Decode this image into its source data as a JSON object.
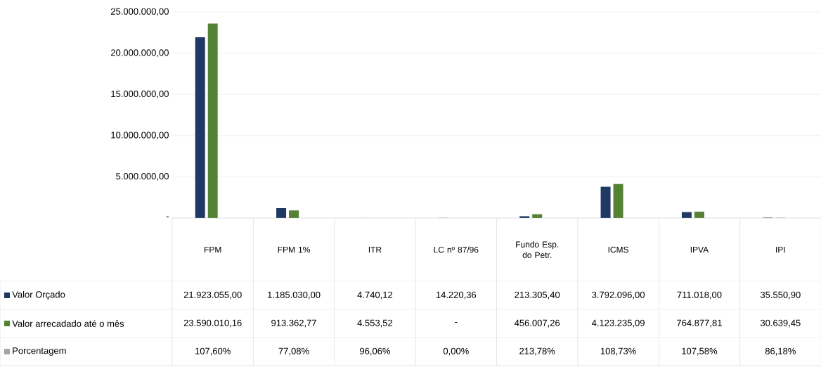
{
  "chart_data": {
    "type": "bar",
    "categories": [
      "FPM",
      "FPM 1%",
      "ITR",
      "LC nº 87/96",
      "Fundo Esp. do Petr.",
      "ICMS",
      "IPVA",
      "IPI"
    ],
    "series": [
      {
        "name": "Valor Orçado",
        "color": "#203864",
        "values": [
          21923055.0,
          1185030.0,
          4740.12,
          14220.36,
          213305.4,
          3792096.0,
          711018.0,
          35550.9
        ],
        "value_labels": [
          "21.923.055,00",
          "1.185.030,00",
          "4.740,12",
          "14.220,36",
          "213.305,40",
          "3.792.096,00",
          "711.018,00",
          "35.550,90"
        ]
      },
      {
        "name": "Valor arrecadado até o mês",
        "color": "#548235",
        "values": [
          23590010.16,
          913362.77,
          4553.52,
          null,
          456007.26,
          4123235.09,
          764877.81,
          30639.45
        ],
        "value_labels": [
          "23.590.010,16",
          "913.362,77",
          "4.553,52",
          "-",
          "456.007,26",
          "4.123.235,09",
          "764.877,81",
          "30.639,45"
        ]
      },
      {
        "name": "Porcentagem",
        "color": "#a5a5a5",
        "values": [
          107.6,
          77.08,
          96.06,
          0.0,
          213.78,
          108.73,
          107.58,
          86.18
        ],
        "value_labels": [
          "107,60%",
          "77,08%",
          "96,06%",
          "0,00%",
          "213,78%",
          "108,73%",
          "107,58%",
          "86,18%"
        ]
      }
    ],
    "ylim": [
      0,
      25000000
    ],
    "yticks": [
      {
        "value": 0,
        "label": "-"
      },
      {
        "value": 5000000,
        "label": "5.000.000,00"
      },
      {
        "value": 10000000,
        "label": "10.000.000,00"
      },
      {
        "value": 15000000,
        "label": "15.000.000,00"
      },
      {
        "value": 20000000,
        "label": "20.000.000,00"
      },
      {
        "value": 25000000,
        "label": "25.000.000,00"
      }
    ],
    "grid": "y",
    "legend": "bottom left"
  }
}
